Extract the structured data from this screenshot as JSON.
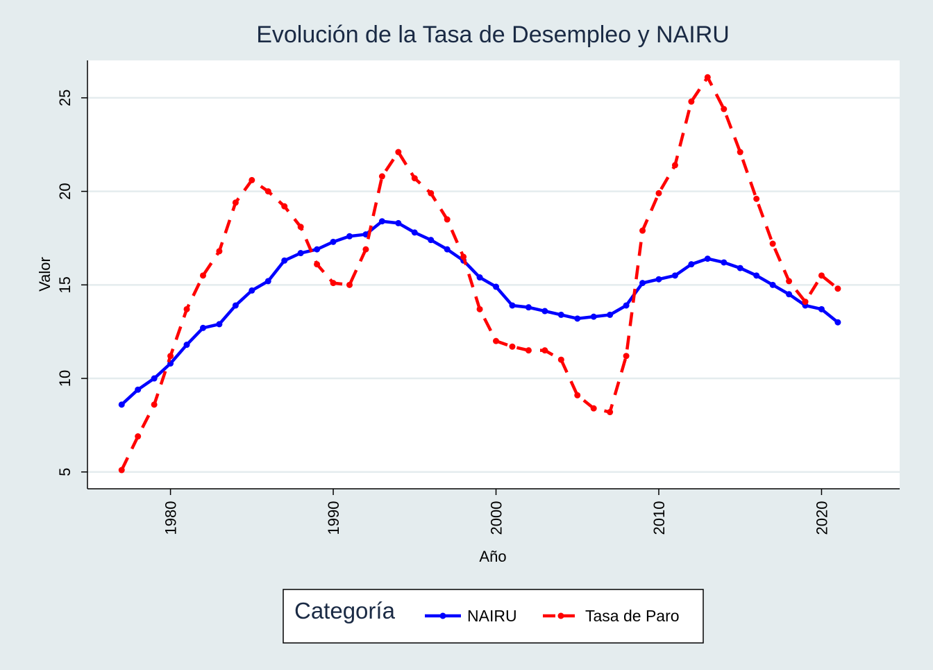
{
  "colors": {
    "background": "#e4ecee",
    "plot_background": "#ffffff",
    "grid": "#e4ecee",
    "title": "#1a2a44",
    "nairu": "#0000ff",
    "tasa_paro": "#ff0000"
  },
  "chart_data": {
    "type": "line",
    "title": "Evolución de la Tasa de Desempleo y NAIRU",
    "xlabel": "Año",
    "ylabel": "Valor",
    "xlim": [
      1974.9,
      2024.8
    ],
    "ylim": [
      4.1,
      27.0
    ],
    "xticks": [
      1980,
      1990,
      2000,
      2010,
      2020
    ],
    "yticks": [
      5,
      10,
      15,
      20,
      25
    ],
    "grid": true,
    "legend": {
      "title": "Categoría",
      "position": "bottom-center"
    },
    "x": [
      1977,
      1978,
      1979,
      1980,
      1981,
      1982,
      1983,
      1984,
      1985,
      1986,
      1987,
      1988,
      1989,
      1990,
      1991,
      1992,
      1993,
      1994,
      1995,
      1996,
      1997,
      1998,
      1999,
      2000,
      2001,
      2002,
      2003,
      2004,
      2005,
      2006,
      2007,
      2008,
      2009,
      2010,
      2011,
      2012,
      2013,
      2014,
      2015,
      2016,
      2017,
      2018,
      2019,
      2020,
      2021
    ],
    "series": [
      {
        "name": "NAIRU",
        "color": "#0000ff",
        "style": "solid",
        "values": [
          8.6,
          9.4,
          10.0,
          10.8,
          11.8,
          12.7,
          12.9,
          13.9,
          14.7,
          15.2,
          16.3,
          16.7,
          16.9,
          17.3,
          17.6,
          17.7,
          18.4,
          18.3,
          17.8,
          17.4,
          16.9,
          16.3,
          15.4,
          14.9,
          13.9,
          13.8,
          13.6,
          13.4,
          13.2,
          13.3,
          13.4,
          13.9,
          15.1,
          15.3,
          15.5,
          16.1,
          16.4,
          16.2,
          15.9,
          15.5,
          15.0,
          14.5,
          13.9,
          13.7,
          13.0
        ]
      },
      {
        "name": "Tasa de Paro",
        "color": "#ff0000",
        "style": "dashed",
        "values": [
          5.1,
          6.9,
          8.6,
          11.2,
          13.7,
          15.5,
          16.8,
          19.4,
          20.6,
          20.0,
          19.2,
          18.1,
          16.1,
          15.1,
          15.0,
          16.9,
          20.8,
          22.1,
          20.7,
          19.9,
          18.5,
          16.5,
          13.7,
          12.0,
          11.7,
          11.5,
          11.5,
          11.0,
          9.1,
          8.4,
          8.2,
          11.2,
          17.9,
          19.9,
          21.4,
          24.8,
          26.1,
          24.4,
          22.1,
          19.6,
          17.2,
          15.2,
          14.1,
          15.5,
          14.8
        ]
      }
    ]
  }
}
